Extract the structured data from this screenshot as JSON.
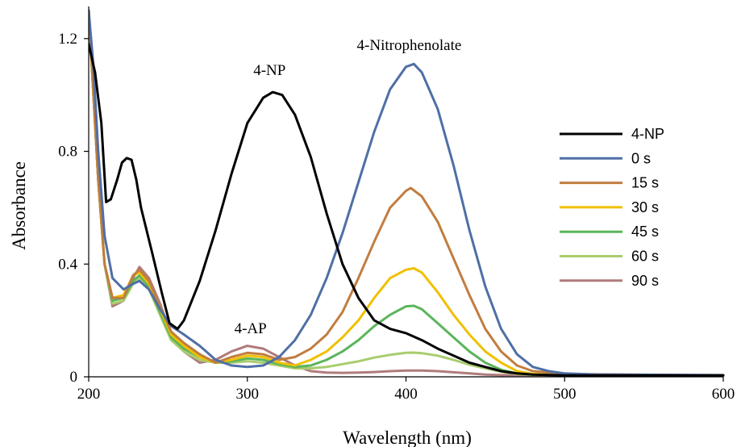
{
  "chart_data": {
    "type": "line",
    "xlabel": "Wavelength (nm)",
    "ylabel": "Absorbance",
    "xlim": [
      200,
      600
    ],
    "ylim": [
      0,
      1.3
    ],
    "xticks": [
      "200",
      "300",
      "400",
      "500",
      "600"
    ],
    "yticks": [
      "0",
      "0.4",
      "0.8",
      "1.2"
    ],
    "xtick_values": [
      200,
      300,
      400,
      500,
      600
    ],
    "ytick_values": [
      0,
      0.4,
      0.8,
      1.2
    ],
    "grid": false,
    "legend_position": "right",
    "annotations": [
      {
        "text": "4-Nitrophenolate",
        "x": 402,
        "y": 1.16
      },
      {
        "text": "4-NP",
        "x": 314,
        "y": 1.07
      },
      {
        "text": "4-AP",
        "x": 302,
        "y": 0.155
      }
    ],
    "series": [
      {
        "name": "4-NP",
        "color": "#000000",
        "points": [
          [
            200,
            1.18
          ],
          [
            204,
            1.08
          ],
          [
            208,
            0.9
          ],
          [
            211,
            0.62
          ],
          [
            214,
            0.63
          ],
          [
            218,
            0.7
          ],
          [
            221,
            0.76
          ],
          [
            224,
            0.776
          ],
          [
            227,
            0.77
          ],
          [
            230,
            0.7
          ],
          [
            233,
            0.6
          ],
          [
            240,
            0.44
          ],
          [
            246,
            0.3
          ],
          [
            251,
            0.19
          ],
          [
            256,
            0.17
          ],
          [
            260,
            0.2
          ],
          [
            270,
            0.34
          ],
          [
            280,
            0.52
          ],
          [
            290,
            0.72
          ],
          [
            300,
            0.9
          ],
          [
            310,
            0.99
          ],
          [
            316,
            1.01
          ],
          [
            322,
            1.0
          ],
          [
            330,
            0.93
          ],
          [
            340,
            0.78
          ],
          [
            350,
            0.58
          ],
          [
            360,
            0.4
          ],
          [
            370,
            0.28
          ],
          [
            380,
            0.2
          ],
          [
            390,
            0.17
          ],
          [
            400,
            0.155
          ],
          [
            410,
            0.13
          ],
          [
            420,
            0.1
          ],
          [
            430,
            0.075
          ],
          [
            440,
            0.05
          ],
          [
            450,
            0.035
          ],
          [
            460,
            0.02
          ],
          [
            470,
            0.012
          ],
          [
            480,
            0.008
          ],
          [
            500,
            0.005
          ],
          [
            600,
            0.005
          ]
        ]
      },
      {
        "name": "0 s",
        "color": "#4f6fa5",
        "points": [
          [
            200,
            1.3
          ],
          [
            203,
            1.1
          ],
          [
            206,
            0.8
          ],
          [
            210,
            0.5
          ],
          [
            215,
            0.35
          ],
          [
            222,
            0.31
          ],
          [
            228,
            0.33
          ],
          [
            232,
            0.34
          ],
          [
            238,
            0.31
          ],
          [
            245,
            0.24
          ],
          [
            252,
            0.18
          ],
          [
            260,
            0.15
          ],
          [
            270,
            0.11
          ],
          [
            280,
            0.06
          ],
          [
            290,
            0.04
          ],
          [
            300,
            0.035
          ],
          [
            310,
            0.04
          ],
          [
            320,
            0.07
          ],
          [
            330,
            0.13
          ],
          [
            340,
            0.22
          ],
          [
            350,
            0.35
          ],
          [
            360,
            0.51
          ],
          [
            370,
            0.69
          ],
          [
            380,
            0.87
          ],
          [
            390,
            1.02
          ],
          [
            400,
            1.1
          ],
          [
            405,
            1.11
          ],
          [
            410,
            1.08
          ],
          [
            420,
            0.95
          ],
          [
            430,
            0.75
          ],
          [
            440,
            0.52
          ],
          [
            450,
            0.32
          ],
          [
            460,
            0.17
          ],
          [
            470,
            0.08
          ],
          [
            480,
            0.035
          ],
          [
            490,
            0.02
          ],
          [
            500,
            0.012
          ],
          [
            520,
            0.008
          ],
          [
            600,
            0.006
          ]
        ]
      },
      {
        "name": "15 s",
        "color": "#c17d3f",
        "points": [
          [
            200,
            1.3
          ],
          [
            203,
            1.0
          ],
          [
            206,
            0.7
          ],
          [
            210,
            0.4
          ],
          [
            215,
            0.28
          ],
          [
            222,
            0.28
          ],
          [
            228,
            0.36
          ],
          [
            232,
            0.38
          ],
          [
            238,
            0.34
          ],
          [
            245,
            0.25
          ],
          [
            252,
            0.16
          ],
          [
            260,
            0.12
          ],
          [
            270,
            0.08
          ],
          [
            280,
            0.05
          ],
          [
            290,
            0.07
          ],
          [
            300,
            0.085
          ],
          [
            310,
            0.08
          ],
          [
            320,
            0.06
          ],
          [
            330,
            0.07
          ],
          [
            340,
            0.1
          ],
          [
            350,
            0.15
          ],
          [
            360,
            0.23
          ],
          [
            370,
            0.35
          ],
          [
            380,
            0.48
          ],
          [
            390,
            0.6
          ],
          [
            400,
            0.66
          ],
          [
            403,
            0.67
          ],
          [
            410,
            0.64
          ],
          [
            420,
            0.55
          ],
          [
            430,
            0.42
          ],
          [
            440,
            0.29
          ],
          [
            450,
            0.17
          ],
          [
            460,
            0.09
          ],
          [
            470,
            0.04
          ],
          [
            480,
            0.02
          ],
          [
            500,
            0.01
          ],
          [
            600,
            0.005
          ]
        ]
      },
      {
        "name": "30 s",
        "color": "#f0c000",
        "points": [
          [
            200,
            1.3
          ],
          [
            203,
            1.0
          ],
          [
            206,
            0.7
          ],
          [
            210,
            0.4
          ],
          [
            215,
            0.28
          ],
          [
            222,
            0.29
          ],
          [
            228,
            0.36
          ],
          [
            232,
            0.37
          ],
          [
            238,
            0.33
          ],
          [
            245,
            0.24
          ],
          [
            252,
            0.15
          ],
          [
            260,
            0.11
          ],
          [
            270,
            0.07
          ],
          [
            280,
            0.05
          ],
          [
            290,
            0.06
          ],
          [
            300,
            0.075
          ],
          [
            310,
            0.07
          ],
          [
            320,
            0.05
          ],
          [
            330,
            0.04
          ],
          [
            340,
            0.06
          ],
          [
            350,
            0.09
          ],
          [
            360,
            0.14
          ],
          [
            370,
            0.2
          ],
          [
            380,
            0.28
          ],
          [
            390,
            0.35
          ],
          [
            400,
            0.38
          ],
          [
            405,
            0.385
          ],
          [
            410,
            0.37
          ],
          [
            420,
            0.3
          ],
          [
            430,
            0.22
          ],
          [
            440,
            0.15
          ],
          [
            450,
            0.09
          ],
          [
            460,
            0.05
          ],
          [
            470,
            0.02
          ],
          [
            480,
            0.01
          ],
          [
            500,
            0.006
          ],
          [
            600,
            0.005
          ]
        ]
      },
      {
        "name": "45 s",
        "color": "#5ab55a",
        "points": [
          [
            200,
            1.3
          ],
          [
            203,
            1.0
          ],
          [
            206,
            0.7
          ],
          [
            210,
            0.4
          ],
          [
            215,
            0.27
          ],
          [
            222,
            0.28
          ],
          [
            228,
            0.34
          ],
          [
            232,
            0.36
          ],
          [
            238,
            0.32
          ],
          [
            245,
            0.23
          ],
          [
            252,
            0.14
          ],
          [
            260,
            0.1
          ],
          [
            270,
            0.07
          ],
          [
            280,
            0.05
          ],
          [
            290,
            0.055
          ],
          [
            300,
            0.065
          ],
          [
            310,
            0.06
          ],
          [
            320,
            0.045
          ],
          [
            330,
            0.035
          ],
          [
            340,
            0.04
          ],
          [
            350,
            0.06
          ],
          [
            360,
            0.09
          ],
          [
            370,
            0.13
          ],
          [
            380,
            0.18
          ],
          [
            390,
            0.22
          ],
          [
            400,
            0.25
          ],
          [
            405,
            0.252
          ],
          [
            410,
            0.24
          ],
          [
            420,
            0.19
          ],
          [
            430,
            0.14
          ],
          [
            440,
            0.09
          ],
          [
            450,
            0.05
          ],
          [
            460,
            0.025
          ],
          [
            470,
            0.012
          ],
          [
            480,
            0.008
          ],
          [
            600,
            0.005
          ]
        ]
      },
      {
        "name": "60 s",
        "color": "#a9cc6e",
        "points": [
          [
            200,
            1.3
          ],
          [
            203,
            1.0
          ],
          [
            206,
            0.7
          ],
          [
            210,
            0.4
          ],
          [
            215,
            0.26
          ],
          [
            222,
            0.27
          ],
          [
            228,
            0.33
          ],
          [
            232,
            0.35
          ],
          [
            238,
            0.31
          ],
          [
            245,
            0.22
          ],
          [
            252,
            0.13
          ],
          [
            260,
            0.09
          ],
          [
            270,
            0.06
          ],
          [
            280,
            0.05
          ],
          [
            290,
            0.05
          ],
          [
            300,
            0.055
          ],
          [
            310,
            0.05
          ],
          [
            320,
            0.04
          ],
          [
            330,
            0.03
          ],
          [
            340,
            0.03
          ],
          [
            350,
            0.035
          ],
          [
            360,
            0.045
          ],
          [
            370,
            0.055
          ],
          [
            380,
            0.068
          ],
          [
            390,
            0.078
          ],
          [
            400,
            0.085
          ],
          [
            405,
            0.086
          ],
          [
            410,
            0.084
          ],
          [
            420,
            0.075
          ],
          [
            430,
            0.06
          ],
          [
            440,
            0.043
          ],
          [
            450,
            0.03
          ],
          [
            460,
            0.018
          ],
          [
            470,
            0.01
          ],
          [
            480,
            0.007
          ],
          [
            600,
            0.005
          ]
        ]
      },
      {
        "name": "90 s",
        "color": "#b07b7b",
        "points": [
          [
            200,
            1.3
          ],
          [
            203,
            1.0
          ],
          [
            206,
            0.7
          ],
          [
            210,
            0.4
          ],
          [
            215,
            0.25
          ],
          [
            222,
            0.27
          ],
          [
            228,
            0.35
          ],
          [
            232,
            0.39
          ],
          [
            238,
            0.35
          ],
          [
            245,
            0.26
          ],
          [
            252,
            0.15
          ],
          [
            260,
            0.09
          ],
          [
            270,
            0.05
          ],
          [
            280,
            0.06
          ],
          [
            290,
            0.09
          ],
          [
            300,
            0.11
          ],
          [
            310,
            0.1
          ],
          [
            320,
            0.07
          ],
          [
            330,
            0.04
          ],
          [
            340,
            0.02
          ],
          [
            350,
            0.015
          ],
          [
            360,
            0.014
          ],
          [
            370,
            0.015
          ],
          [
            380,
            0.017
          ],
          [
            390,
            0.02
          ],
          [
            400,
            0.022
          ],
          [
            410,
            0.022
          ],
          [
            420,
            0.02
          ],
          [
            430,
            0.016
          ],
          [
            440,
            0.012
          ],
          [
            450,
            0.008
          ],
          [
            460,
            0.006
          ],
          [
            600,
            0.005
          ]
        ]
      }
    ]
  }
}
